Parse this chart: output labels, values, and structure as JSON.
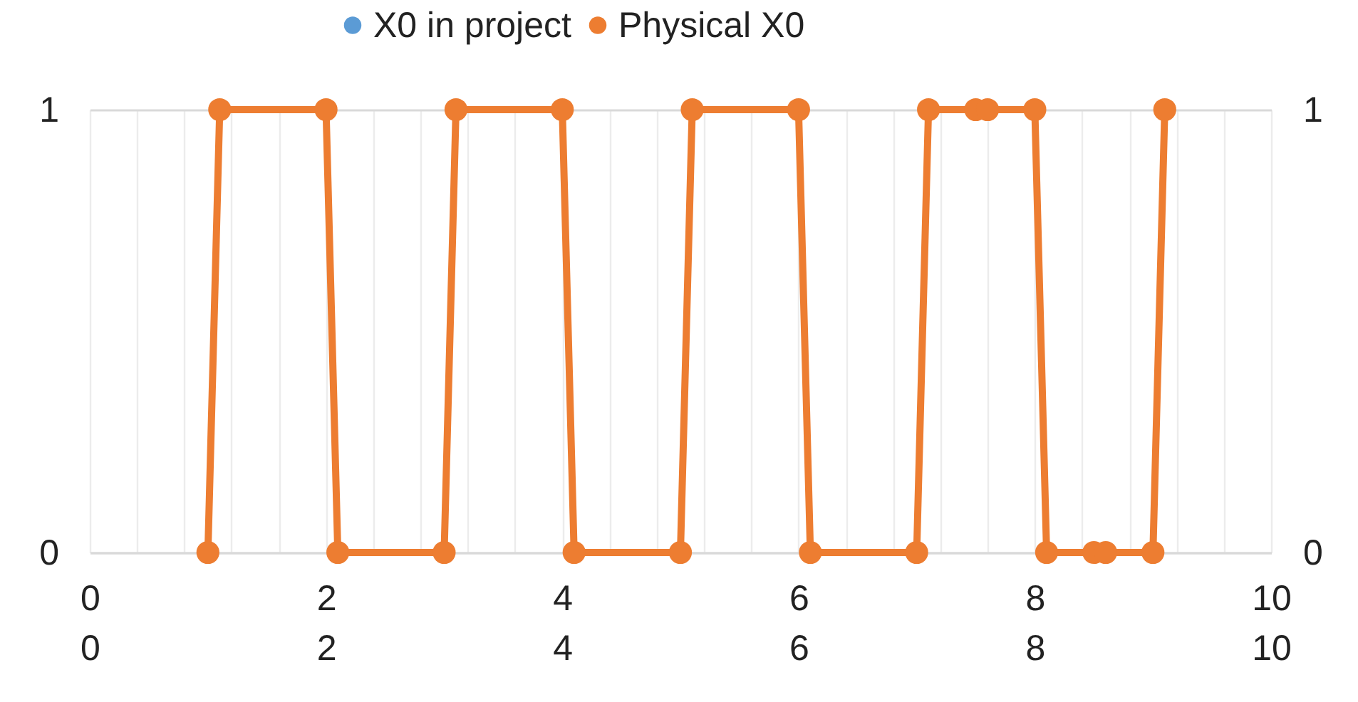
{
  "chart_data": {
    "type": "line",
    "legend": "top",
    "grid": true,
    "marker": "circle",
    "line_style": "solid",
    "xlim": [
      0,
      10
    ],
    "xticks": [
      0,
      {
        "value": 0.4,
        "label": null
      },
      {
        "value": 0.8,
        "label": null
      },
      {
        "value": 1.2,
        "label": null
      },
      {
        "value": 1.6,
        "label": null
      },
      2,
      {
        "value": 2.4,
        "label": null
      },
      {
        "value": 2.8,
        "label": null
      },
      {
        "value": 3.2,
        "label": null
      },
      {
        "value": 3.6,
        "label": null
      },
      4,
      {
        "value": 4.4,
        "label": null
      },
      {
        "value": 4.8,
        "label": null
      },
      {
        "value": 5.2,
        "label": null
      },
      {
        "value": 5.6,
        "label": null
      },
      6,
      {
        "value": 6.4,
        "label": null
      },
      {
        "value": 6.8,
        "label": null
      },
      {
        "value": 7.2,
        "label": null
      },
      {
        "value": 7.6,
        "label": null
      },
      8,
      {
        "value": 8.4,
        "label": null
      },
      {
        "value": 8.8,
        "label": null
      },
      {
        "value": 9.2,
        "label": null
      },
      {
        "value": 9.6,
        "label": null
      },
      10
    ],
    "x2lim": [
      0,
      10
    ],
    "x2ticks": [
      0,
      2,
      4,
      6,
      8,
      10
    ],
    "ylim": [
      0,
      1
    ],
    "yticks": [
      0,
      1
    ],
    "y2lim": [
      0,
      1
    ],
    "y2ticks": [
      0,
      1
    ],
    "x": [
      1.0,
      1.1,
      2.0,
      2.1,
      3.0,
      3.1,
      4.0,
      4.1,
      5.0,
      5.1,
      6.0,
      6.1,
      7.0,
      7.1,
      7.5,
      7.6,
      8.0,
      8.1,
      8.5,
      8.6,
      9.0,
      9.1
    ],
    "series": [
      {
        "name": "X0 in project",
        "color": "#5b9bd5",
        "values": [
          null,
          null,
          null,
          null,
          null,
          null,
          null,
          null,
          null,
          null,
          null,
          null,
          null,
          null,
          null,
          null,
          null,
          null,
          null,
          null,
          null,
          null
        ]
      },
      {
        "name": "Physical X0",
        "color": "#ed7d31",
        "values": [
          0,
          1,
          1,
          0,
          0,
          1,
          1,
          0,
          0,
          1,
          1,
          0,
          0,
          1,
          1,
          1,
          1,
          0,
          0,
          0,
          0,
          1
        ]
      }
    ]
  }
}
